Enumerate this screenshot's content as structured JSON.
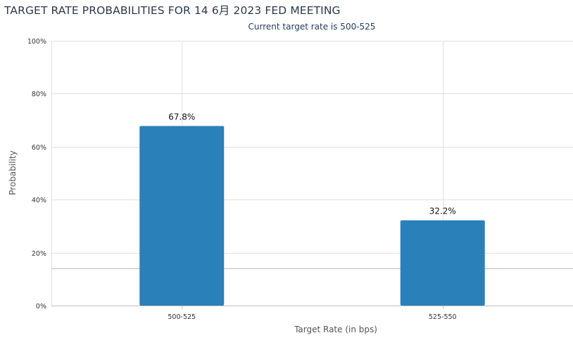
{
  "title": "TARGET RATE PROBABILITIES FOR 14 6月 2023 FED MEETING",
  "subtitle": "Current target rate is 500-525",
  "colors": {
    "bar": "#2a80b9",
    "grid": "#e0e0e0",
    "axis": "#c0c0c0",
    "baseline": "#bbbbbb"
  },
  "chart_data": {
    "type": "bar",
    "categories": [
      "500-525",
      "525-550"
    ],
    "values": [
      67.8,
      32.2
    ],
    "data_labels": [
      "67.8%",
      "32.2%"
    ],
    "ylim": [
      0,
      100
    ],
    "yticks": [
      "0%",
      "20%",
      "40%",
      "60%",
      "80%",
      "100%"
    ],
    "ytick_values": [
      0,
      20,
      40,
      60,
      80,
      100
    ],
    "xlabel": "Target Rate (in bps)",
    "ylabel": "Probability",
    "reference_line_value": 14,
    "grid": true
  }
}
